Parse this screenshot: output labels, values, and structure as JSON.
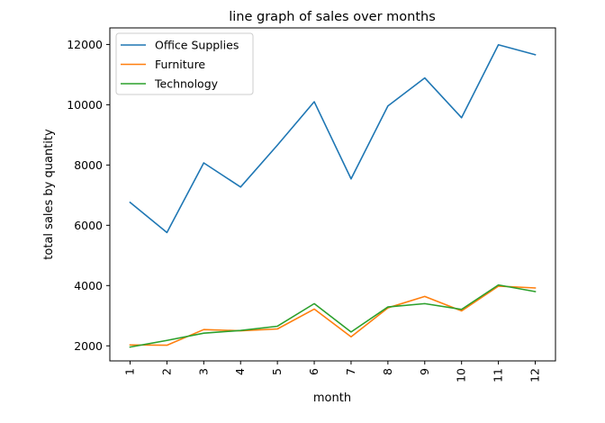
{
  "chart_data": {
    "type": "line",
    "title": "line graph of sales over months",
    "xlabel": "month",
    "ylabel": "total sales by quantity",
    "x": [
      1,
      2,
      3,
      4,
      5,
      6,
      7,
      8,
      9,
      10,
      11,
      12
    ],
    "x_tick_labels": [
      "1",
      "2",
      "3",
      "4",
      "5",
      "6",
      "7",
      "8",
      "9",
      "10",
      "11",
      "12"
    ],
    "y_ticks": [
      2000,
      4000,
      6000,
      8000,
      10000,
      12000
    ],
    "y_tick_labels": [
      "2000",
      "4000",
      "6000",
      "8000",
      "10000",
      "12000"
    ],
    "xlim": [
      0.45,
      12.55
    ],
    "ylim": [
      1500,
      12550
    ],
    "grid": false,
    "legend_position": "top-left",
    "series": [
      {
        "name": "Office Supplies",
        "color": "#1f77b4",
        "values": [
          6760,
          5760,
          8070,
          7270,
          8660,
          10100,
          7540,
          9960,
          10890,
          9570,
          11990,
          11660
        ]
      },
      {
        "name": "Furniture",
        "color": "#ff7f0e",
        "values": [
          2030,
          2020,
          2540,
          2500,
          2560,
          3220,
          2300,
          3260,
          3640,
          3160,
          3980,
          3920
        ]
      },
      {
        "name": "Technology",
        "color": "#2ca02c",
        "values": [
          1960,
          2180,
          2420,
          2510,
          2650,
          3400,
          2460,
          3290,
          3400,
          3210,
          4020,
          3800
        ]
      }
    ]
  }
}
